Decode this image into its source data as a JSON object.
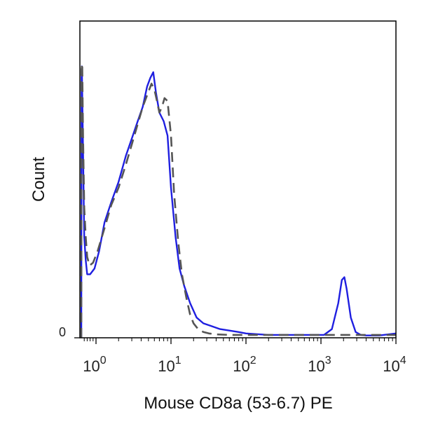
{
  "chart_data": {
    "type": "line",
    "title": "",
    "xlabel": "Mouse CD8a (53-6.7) PE",
    "ylabel": "Count",
    "x_scale": "log",
    "xlim": [
      0.5,
      10000
    ],
    "ylim": [
      0,
      100
    ],
    "x_ticks": [
      {
        "value": 1,
        "label": "10",
        "exp": "0"
      },
      {
        "value": 10,
        "label": "10",
        "exp": "1"
      },
      {
        "value": 100,
        "label": "10",
        "exp": "2"
      },
      {
        "value": 1000,
        "label": "10",
        "exp": "3"
      },
      {
        "value": 10000,
        "label": "10",
        "exp": "4"
      }
    ],
    "y_ticks": [
      {
        "value": 0,
        "label": "0"
      }
    ],
    "grid": false,
    "legend": null,
    "series": [
      {
        "style": "solid",
        "color": "#1f1fe0",
        "x": [
          0.5,
          0.51,
          0.52,
          0.55,
          0.6,
          0.65,
          0.7,
          0.8,
          0.95,
          1.1,
          1.3,
          1.6,
          2.0,
          2.5,
          3.0,
          3.6,
          4.2,
          4.8,
          5.3,
          5.8,
          6.3,
          7.0,
          8.0,
          9.0,
          10.0,
          11.5,
          13.0,
          15.0,
          18.0,
          22.0,
          27.0,
          35.0,
          45.0,
          60.0,
          80.0,
          100.0,
          150.0,
          200.0,
          300.0,
          500.0,
          800.0,
          1100.0,
          1400.0,
          1700.0,
          1900.0,
          2050.0,
          2200.0,
          2500.0,
          2900.0,
          3400.0,
          4000.0,
          6000.0,
          10000.0
        ],
        "y": [
          0,
          90,
          94,
          72,
          35,
          27,
          22,
          22,
          24,
          30,
          40,
          47,
          54,
          63,
          69,
          75,
          80,
          87,
          90,
          92,
          85,
          78,
          75,
          70,
          52,
          35,
          24,
          18,
          12,
          7,
          5,
          4,
          3,
          2.5,
          2,
          1.5,
          1.2,
          1.0,
          1.0,
          1.0,
          1.0,
          1.0,
          3,
          12,
          20,
          21,
          17,
          7,
          2,
          1,
          0.8,
          0.8,
          1.5
        ]
      },
      {
        "style": "dashed",
        "color": "#555555",
        "x": [
          0.5,
          0.51,
          0.53,
          0.56,
          0.6,
          0.65,
          0.7,
          0.78,
          0.9,
          1.05,
          1.3,
          1.6,
          2.0,
          2.5,
          3.0,
          3.6,
          4.2,
          4.8,
          5.5,
          6.0,
          6.5,
          7.0,
          7.6,
          8.2,
          9.0,
          10.0,
          11.0,
          12.5,
          14.0,
          16.0,
          18.0,
          20.0,
          23.0,
          27.0,
          32.0,
          40.0,
          60.0,
          100.0,
          300.0,
          1000.0,
          3000.0,
          10000.0
        ],
        "y": [
          0,
          93,
          95,
          70,
          45,
          35,
          28,
          25,
          26,
          30,
          38,
          46,
          52,
          60,
          67,
          74,
          80,
          84,
          88,
          86,
          82,
          78,
          80,
          83,
          82,
          70,
          50,
          33,
          22,
          14,
          8,
          5,
          3,
          2,
          1.5,
          1.2,
          1,
          1,
          1,
          1,
          1,
          1
        ]
      }
    ]
  }
}
